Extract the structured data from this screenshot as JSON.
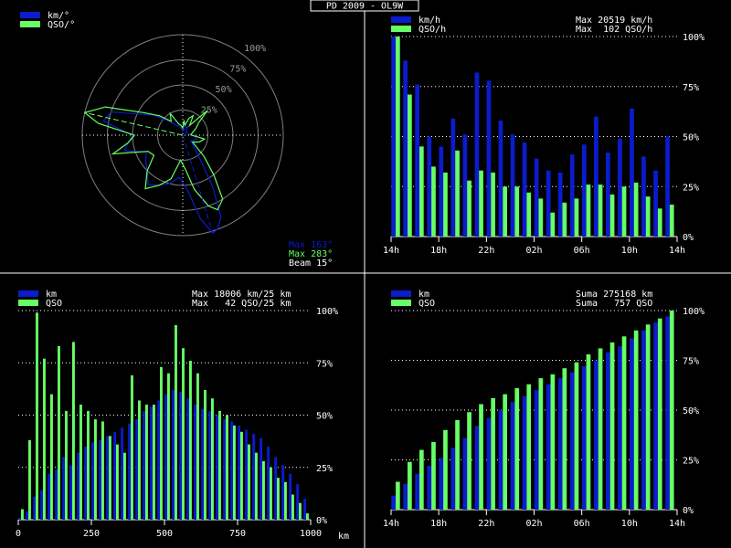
{
  "window_title": "PD 2009 - OL9W",
  "colors": {
    "blue": "#0a1ccc",
    "green": "#66ff66",
    "white": "#ffffff"
  },
  "chart_data": [
    {
      "type": "polar",
      "legend": [
        "km/°",
        "QSO/°"
      ],
      "ring_labels": [
        "25%",
        "50%",
        "75%",
        "100%"
      ],
      "info": [
        "Max 163°",
        "Max 283°",
        "Beam 15°"
      ],
      "km": [
        {
          "az": 0,
          "r": 0.04
        },
        {
          "az": 10,
          "r": 0.05
        },
        {
          "az": 20,
          "r": 0.08
        },
        {
          "az": 30,
          "r": 0.1
        },
        {
          "az": 40,
          "r": 0.06
        },
        {
          "az": 55,
          "r": 0.04
        },
        {
          "az": 70,
          "r": 0.05
        },
        {
          "az": 85,
          "r": 0.07
        },
        {
          "az": 95,
          "r": 0.12
        },
        {
          "az": 105,
          "r": 0.14
        },
        {
          "az": 115,
          "r": 0.12
        },
        {
          "az": 125,
          "r": 0.1
        },
        {
          "az": 135,
          "r": 0.15
        },
        {
          "az": 145,
          "r": 0.32
        },
        {
          "az": 150,
          "r": 0.6
        },
        {
          "az": 155,
          "r": 0.9
        },
        {
          "az": 160,
          "r": 1.0
        },
        {
          "az": 163,
          "r": 1.02
        },
        {
          "az": 168,
          "r": 0.85
        },
        {
          "az": 175,
          "r": 0.55
        },
        {
          "az": 185,
          "r": 0.42
        },
        {
          "az": 195,
          "r": 0.5
        },
        {
          "az": 205,
          "r": 0.55
        },
        {
          "az": 215,
          "r": 0.6
        },
        {
          "az": 225,
          "r": 0.5
        },
        {
          "az": 235,
          "r": 0.45
        },
        {
          "az": 245,
          "r": 0.4
        },
        {
          "az": 255,
          "r": 0.6
        },
        {
          "az": 262,
          "r": 0.55
        },
        {
          "az": 270,
          "r": 0.5
        },
        {
          "az": 280,
          "r": 0.8
        },
        {
          "az": 288,
          "r": 0.75
        },
        {
          "az": 295,
          "r": 0.5
        },
        {
          "az": 305,
          "r": 0.35
        },
        {
          "az": 315,
          "r": 0.2
        },
        {
          "az": 325,
          "r": 0.12
        },
        {
          "az": 335,
          "r": 0.1
        },
        {
          "az": 345,
          "r": 0.08
        },
        {
          "az": 355,
          "r": 0.05
        }
      ],
      "qso": [
        {
          "az": 0,
          "r": 0.07
        },
        {
          "az": 5,
          "r": 0.15
        },
        {
          "az": 12,
          "r": 0.1
        },
        {
          "az": 20,
          "r": 0.18
        },
        {
          "az": 28,
          "r": 0.22
        },
        {
          "az": 35,
          "r": 0.12
        },
        {
          "az": 45,
          "r": 0.35
        },
        {
          "az": 52,
          "r": 0.2
        },
        {
          "az": 62,
          "r": 0.15
        },
        {
          "az": 75,
          "r": 0.1
        },
        {
          "az": 88,
          "r": 0.08
        },
        {
          "az": 100,
          "r": 0.22
        },
        {
          "az": 112,
          "r": 0.18
        },
        {
          "az": 125,
          "r": 0.12
        },
        {
          "az": 135,
          "r": 0.3
        },
        {
          "az": 142,
          "r": 0.5
        },
        {
          "az": 148,
          "r": 0.75
        },
        {
          "az": 155,
          "r": 0.82
        },
        {
          "az": 160,
          "r": 0.75
        },
        {
          "az": 168,
          "r": 0.55
        },
        {
          "az": 175,
          "r": 0.35
        },
        {
          "az": 185,
          "r": 0.25
        },
        {
          "az": 195,
          "r": 0.45
        },
        {
          "az": 205,
          "r": 0.55
        },
        {
          "az": 215,
          "r": 0.65
        },
        {
          "az": 225,
          "r": 0.5
        },
        {
          "az": 235,
          "r": 0.35
        },
        {
          "az": 245,
          "r": 0.38
        },
        {
          "az": 255,
          "r": 0.72
        },
        {
          "az": 262,
          "r": 0.55
        },
        {
          "az": 270,
          "r": 0.48
        },
        {
          "az": 278,
          "r": 0.85
        },
        {
          "az": 283,
          "r": 1.0
        },
        {
          "az": 290,
          "r": 0.82
        },
        {
          "az": 300,
          "r": 0.45
        },
        {
          "az": 310,
          "r": 0.3
        },
        {
          "az": 320,
          "r": 0.18
        },
        {
          "az": 330,
          "r": 0.25
        },
        {
          "az": 340,
          "r": 0.12
        },
        {
          "az": 350,
          "r": 0.1
        }
      ]
    },
    {
      "type": "bar",
      "legend": [
        "km/h",
        "QSO/h"
      ],
      "info": [
        "Max 20519 km/h",
        "Max  102 QSO/h"
      ],
      "y_ticks": [
        "0%",
        "25%",
        "50%",
        "75%",
        "100%"
      ],
      "x_ticks": [
        "14h",
        "18h",
        "22h",
        "02h",
        "06h",
        "10h",
        "14h"
      ],
      "series": [
        {
          "name": "km/h",
          "values": [
            1.0,
            0.88,
            0.76,
            0.5,
            0.45,
            0.59,
            0.51,
            0.82,
            0.78,
            0.58,
            0.51,
            0.47,
            0.39,
            0.33,
            0.32,
            0.41,
            0.46,
            0.6,
            0.42,
            0.49,
            0.64,
            0.4,
            0.33,
            0.5
          ]
        },
        {
          "name": "QSO/h",
          "values": [
            1.0,
            0.71,
            0.45,
            0.35,
            0.32,
            0.43,
            0.28,
            0.33,
            0.32,
            0.25,
            0.25,
            0.22,
            0.19,
            0.12,
            0.17,
            0.19,
            0.26,
            0.26,
            0.21,
            0.25,
            0.27,
            0.2,
            0.14,
            0.16
          ]
        }
      ]
    },
    {
      "type": "bar",
      "legend": [
        "km",
        "QSO"
      ],
      "info": [
        "Max 18006 km/25 km",
        "Max   42 QSO/25 km"
      ],
      "y_ticks": [
        "0%",
        "25%",
        "50%",
        "75%",
        "100%"
      ],
      "x_ticks": [
        "0",
        "250",
        "500",
        "750",
        "1000",
        "km"
      ],
      "series": [
        {
          "name": "km",
          "values": [
            0.01,
            0.04,
            0.11,
            0.14,
            0.22,
            0.24,
            0.3,
            0.26,
            0.32,
            0.35,
            0.37,
            0.38,
            0.4,
            0.42,
            0.44,
            0.46,
            0.48,
            0.52,
            0.54,
            0.57,
            0.6,
            0.62,
            0.61,
            0.58,
            0.55,
            0.53,
            0.52,
            0.5,
            0.48,
            0.47,
            0.45,
            0.43,
            0.41,
            0.39,
            0.35,
            0.3,
            0.26,
            0.22,
            0.17,
            0.1
          ]
        },
        {
          "name": "QSO",
          "values": [
            0.05,
            0.38,
            0.99,
            0.77,
            0.6,
            0.83,
            0.52,
            0.85,
            0.55,
            0.52,
            0.48,
            0.47,
            0.4,
            0.36,
            0.32,
            0.69,
            0.57,
            0.55,
            0.55,
            0.73,
            0.7,
            0.93,
            0.82,
            0.76,
            0.7,
            0.62,
            0.58,
            0.52,
            0.5,
            0.45,
            0.42,
            0.36,
            0.32,
            0.28,
            0.25,
            0.2,
            0.18,
            0.12,
            0.08,
            0.03
          ]
        }
      ]
    },
    {
      "type": "bar",
      "legend": [
        "km",
        "QSO"
      ],
      "info": [
        "Suma 275168 km",
        "Suma   757 QSO"
      ],
      "y_ticks": [
        "0%",
        "25%",
        "50%",
        "75%",
        "100%"
      ],
      "x_ticks": [
        "14h",
        "18h",
        "22h",
        "02h",
        "06h",
        "10h",
        "14h"
      ],
      "series": [
        {
          "name": "km",
          "values": [
            0.07,
            0.13,
            0.18,
            0.22,
            0.26,
            0.31,
            0.36,
            0.42,
            0.46,
            0.5,
            0.54,
            0.57,
            0.6,
            0.63,
            0.66,
            0.69,
            0.72,
            0.75,
            0.79,
            0.82,
            0.86,
            0.9,
            0.94,
            0.97
          ]
        },
        {
          "name": "QSO",
          "values": [
            0.14,
            0.24,
            0.3,
            0.34,
            0.4,
            0.45,
            0.49,
            0.53,
            0.56,
            0.58,
            0.61,
            0.63,
            0.66,
            0.68,
            0.71,
            0.74,
            0.78,
            0.81,
            0.84,
            0.87,
            0.9,
            0.93,
            0.96,
            1.0
          ]
        }
      ]
    }
  ]
}
